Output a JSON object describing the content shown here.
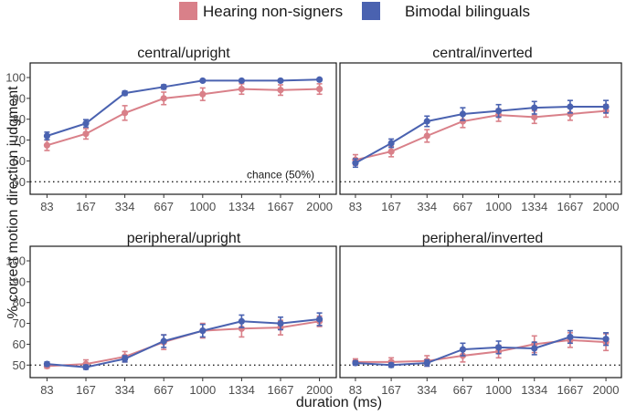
{
  "chart_data": {
    "type": "line",
    "ylabel": "% correct motion direction judgment",
    "xlabel": "duration (ms)",
    "categories": [
      "83",
      "167",
      "334",
      "667",
      "1000",
      "1334",
      "1667",
      "2000"
    ],
    "ylim": [
      44,
      107
    ],
    "yticks": [
      50,
      60,
      70,
      80,
      90,
      100
    ],
    "yticks_on_left_panels_only": true,
    "legend": {
      "position": "top",
      "entries": [
        {
          "name": "Hearing non-signers",
          "color": "#d98089"
        },
        {
          "name": "Bimodal bilinguals",
          "color": "#4a62b0"
        }
      ]
    },
    "reference_line": {
      "value": 50,
      "style": "dotted"
    },
    "annotation": {
      "text": "chance (50%)",
      "panel": 0,
      "x_category": "1667",
      "y": 53.5
    },
    "panels": [
      {
        "title": "central/upright",
        "series": [
          {
            "name": "Hearing non-signers",
            "values": [
              67.5,
              73,
              83,
              90,
              92,
              94.5,
              94,
              94.5
            ],
            "errors": [
              2.5,
              2.5,
              3.5,
              3,
              3,
              2.5,
              2.5,
              2.5
            ]
          },
          {
            "name": "Bimodal bilinguals",
            "values": [
              72,
              78,
              92.5,
              95.5,
              98.5,
              98.5,
              98.5,
              99
            ],
            "errors": [
              1.8,
              1.8,
              1,
              1,
              0.5,
              0.5,
              0.5,
              0.5
            ]
          }
        ]
      },
      {
        "title": "central/inverted",
        "series": [
          {
            "name": "Hearing non-signers",
            "values": [
              60.5,
              64.5,
              72,
              79,
              82,
              81,
              82.5,
              84
            ],
            "errors": [
              2.5,
              2.5,
              3,
              3,
              3,
              3,
              3,
              3
            ]
          },
          {
            "name": "Bimodal bilinguals",
            "values": [
              59,
              68.5,
              79,
              82.5,
              84,
              85.5,
              86,
              86
            ],
            "errors": [
              2,
              2,
              2.5,
              3,
              3,
              3,
              3,
              3
            ]
          }
        ]
      },
      {
        "title": "peripheral/upright",
        "series": [
          {
            "name": "Hearing non-signers",
            "values": [
              49.5,
              50.5,
              54,
              61,
              66.5,
              67.5,
              68,
              71
            ],
            "errors": [
              1,
              2,
              2.5,
              3.5,
              3.5,
              4,
              3.5,
              2.5
            ]
          },
          {
            "name": "Bimodal bilinguals",
            "values": [
              50.5,
              49,
              53,
              61.5,
              66.5,
              71,
              70,
              72
            ],
            "errors": [
              1,
              1,
              1.5,
              3,
              3,
              3,
              3,
              3
            ]
          }
        ]
      },
      {
        "title": "peripheral/inverted",
        "series": [
          {
            "name": "Hearing non-signers",
            "values": [
              51.5,
              51.5,
              52,
              54.5,
              56.5,
              60,
              62,
              61
            ],
            "errors": [
              1.5,
              2,
              2.5,
              3,
              3,
              4,
              3.5,
              4
            ]
          },
          {
            "name": "Bimodal bilinguals",
            "values": [
              51,
              50,
              51,
              57.5,
              58.5,
              58,
              63.5,
              62.5
            ],
            "errors": [
              1,
              1,
              1.5,
              3,
              3,
              3,
              3,
              3
            ]
          }
        ]
      }
    ]
  }
}
